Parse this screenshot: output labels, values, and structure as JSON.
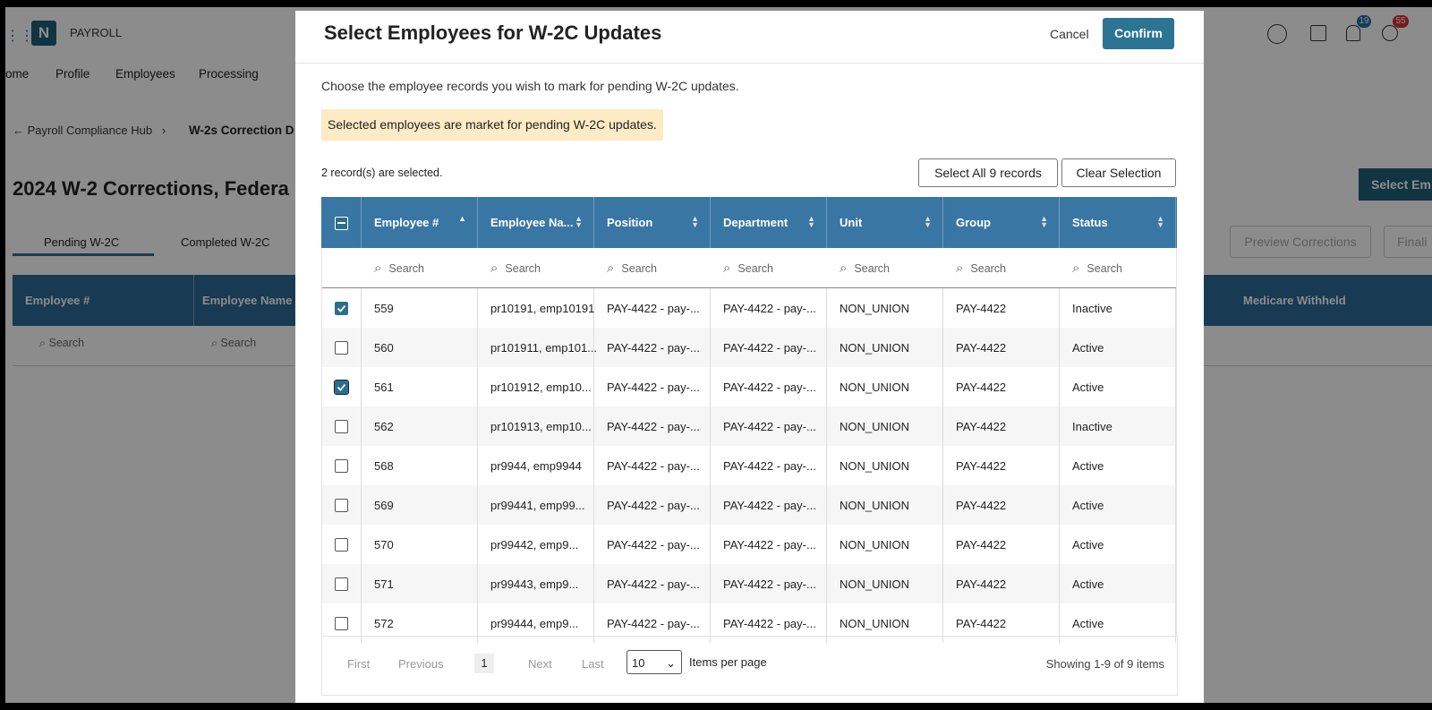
{
  "background": {
    "logo": "N",
    "app_name": "PAYROLL",
    "nav": [
      "ome",
      "Profile",
      "Employees",
      "Processing"
    ],
    "badges": [
      "19",
      "55"
    ],
    "breadcrumb": [
      "Payroll Compliance Hub",
      "W-2s Correction D"
    ],
    "title": "2024 W-2 Corrections, Federa",
    "tabs": [
      "Pending W-2C",
      "Completed W-2C"
    ],
    "columns": [
      "Employee #",
      "Employee Name",
      "Medicare Withheld"
    ],
    "search_placeholder": "Search",
    "buttons": [
      "Select Em",
      "Preview Corrections",
      "Finali"
    ]
  },
  "modal": {
    "title": "Select Employees for W-2C Updates",
    "cancel": "Cancel",
    "confirm": "Confirm",
    "description": "Choose the employee records you wish to mark for pending W-2C updates.",
    "alert": "Selected employees are market for pending W-2C updates.",
    "selection_count": "2 record(s) are selected.",
    "select_all": "Select All 9 records",
    "clear_selection": "Clear Selection",
    "table": {
      "columns": [
        "Employee #",
        "Employee Na...",
        "Position",
        "Department",
        "Unit",
        "Group",
        "Status"
      ],
      "search_placeholder": "Search",
      "rows": [
        {
          "checked": true,
          "cells": [
            "559",
            "pr10191, emp10191",
            "PAY-4422 - pay-...",
            "PAY-4422 - pay-...",
            "NON_UNION",
            "PAY-4422",
            "Inactive"
          ]
        },
        {
          "checked": false,
          "cells": [
            "560",
            "pr101911, emp101...",
            "PAY-4422 - pay-...",
            "PAY-4422 - pay-...",
            "NON_UNION",
            "PAY-4422",
            "Active"
          ]
        },
        {
          "checked": true,
          "cells": [
            "561",
            "pr101912, emp10...",
            "PAY-4422 - pay-...",
            "PAY-4422 - pay-...",
            "NON_UNION",
            "PAY-4422",
            "Active"
          ]
        },
        {
          "checked": false,
          "cells": [
            "562",
            "pr101913, emp10...",
            "PAY-4422 - pay-...",
            "PAY-4422 - pay-...",
            "NON_UNION",
            "PAY-4422",
            "Inactive"
          ]
        },
        {
          "checked": false,
          "cells": [
            "568",
            "pr9944, emp9944",
            "PAY-4422 - pay-...",
            "PAY-4422 - pay-...",
            "NON_UNION",
            "PAY-4422",
            "Active"
          ]
        },
        {
          "checked": false,
          "cells": [
            "569",
            "pr99441, emp99...",
            "PAY-4422 - pay-...",
            "PAY-4422 - pay-...",
            "NON_UNION",
            "PAY-4422",
            "Active"
          ]
        },
        {
          "checked": false,
          "cells": [
            "570",
            "pr99442, emp9...",
            "PAY-4422 - pay-...",
            "PAY-4422 - pay-...",
            "NON_UNION",
            "PAY-4422",
            "Active"
          ]
        },
        {
          "checked": false,
          "cells": [
            "571",
            "pr99443, emp9...",
            "PAY-4422 - pay-...",
            "PAY-4422 - pay-...",
            "NON_UNION",
            "PAY-4422",
            "Active"
          ]
        },
        {
          "checked": false,
          "cells": [
            "572",
            "pr99444, emp9...",
            "PAY-4422 - pay-...",
            "PAY-4422 - pay-...",
            "NON_UNION",
            "PAY-4422",
            "Active"
          ]
        }
      ]
    },
    "pagination": {
      "first": "First",
      "previous": "Previous",
      "page": "1",
      "next": "Next",
      "last": "Last",
      "page_size": "10",
      "page_size_label": "Items per page",
      "summary": "Showing 1-9 of 9 items"
    }
  }
}
